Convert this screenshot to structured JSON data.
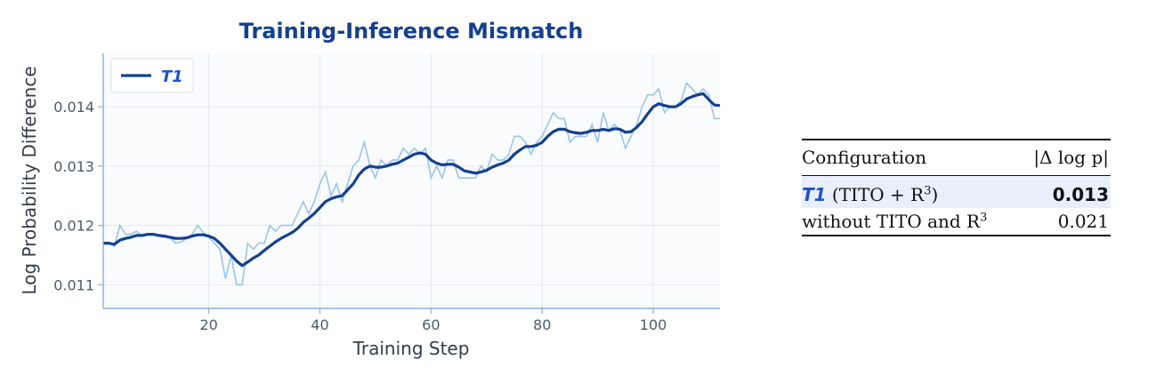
{
  "chart_data": {
    "type": "line",
    "title": "Training-Inference Mismatch",
    "xlabel": "Training Step",
    "ylabel": "Log Probability Difference",
    "xlim": [
      1,
      112
    ],
    "ylim": [
      0.0106,
      0.0149
    ],
    "xticks": [
      20,
      40,
      60,
      80,
      100
    ],
    "yticks": [
      0.011,
      0.012,
      0.013,
      0.014
    ],
    "ytick_labels": [
      "0.011",
      "0.012",
      "0.013",
      "0.014"
    ],
    "grid": true,
    "legend": {
      "position": "top-left",
      "entries": [
        "T1"
      ]
    },
    "colors": {
      "smoothed": "#14418f",
      "raw": "#9cc3ea",
      "plot_background": "#f9fbfd"
    },
    "series": [
      {
        "name": "T1",
        "style": "raw",
        "x": [
          1,
          2,
          3,
          4,
          5,
          6,
          7,
          8,
          9,
          10,
          11,
          12,
          13,
          14,
          15,
          16,
          17,
          18,
          19,
          20,
          21,
          22,
          23,
          24,
          25,
          26,
          27,
          28,
          29,
          30,
          31,
          32,
          33,
          34,
          35,
          36,
          37,
          38,
          39,
          40,
          41,
          42,
          43,
          44,
          45,
          46,
          47,
          48,
          49,
          50,
          51,
          52,
          53,
          54,
          55,
          56,
          57,
          58,
          59,
          60,
          61,
          62,
          63,
          64,
          65,
          66,
          67,
          68,
          69,
          70,
          71,
          72,
          73,
          74,
          75,
          76,
          77,
          78,
          79,
          80,
          81,
          82,
          83,
          84,
          85,
          86,
          87,
          88,
          89,
          90,
          91,
          92,
          93,
          94,
          95,
          96,
          97,
          98,
          99,
          100,
          101,
          102,
          103,
          104,
          105,
          106,
          107,
          108,
          109,
          110,
          111,
          112
        ],
        "y": [
          0.0117,
          0.0117,
          0.01165,
          0.012,
          0.01185,
          0.01185,
          0.0119,
          0.01182,
          0.01186,
          0.01185,
          0.01182,
          0.0118,
          0.0118,
          0.0117,
          0.01172,
          0.01178,
          0.01185,
          0.012,
          0.01188,
          0.0118,
          0.0117,
          0.0116,
          0.0111,
          0.0115,
          0.011,
          0.011,
          0.0117,
          0.0116,
          0.0117,
          0.0117,
          0.012,
          0.0119,
          0.012,
          0.012,
          0.012,
          0.0122,
          0.0124,
          0.0122,
          0.0124,
          0.0127,
          0.0129,
          0.0125,
          0.0127,
          0.0124,
          0.0127,
          0.013,
          0.0131,
          0.0134,
          0.013,
          0.0128,
          0.0131,
          0.013,
          0.0131,
          0.0131,
          0.0133,
          0.0132,
          0.0133,
          0.0132,
          0.0133,
          0.0128,
          0.013,
          0.0128,
          0.0131,
          0.0131,
          0.0128,
          0.0128,
          0.0128,
          0.0128,
          0.013,
          0.0129,
          0.0132,
          0.0131,
          0.0131,
          0.0132,
          0.0135,
          0.0135,
          0.0134,
          0.0132,
          0.0134,
          0.0135,
          0.0137,
          0.0139,
          0.0138,
          0.0138,
          0.0134,
          0.0135,
          0.0135,
          0.0135,
          0.0137,
          0.0134,
          0.0139,
          0.0136,
          0.0137,
          0.0136,
          0.0133,
          0.0135,
          0.0137,
          0.014,
          0.0142,
          0.0142,
          0.0143,
          0.0139,
          0.014,
          0.014,
          0.0141,
          0.0144,
          0.0143,
          0.0142,
          0.0143,
          0.0142,
          0.0138,
          0.0138
        ]
      },
      {
        "name": "T1",
        "style": "smoothed",
        "x": [
          1,
          2,
          3,
          4,
          5,
          6,
          7,
          8,
          9,
          10,
          11,
          12,
          13,
          14,
          15,
          16,
          17,
          18,
          19,
          20,
          21,
          22,
          23,
          24,
          25,
          26,
          27,
          28,
          29,
          30,
          31,
          32,
          33,
          34,
          35,
          36,
          37,
          38,
          39,
          40,
          41,
          42,
          43,
          44,
          45,
          46,
          47,
          48,
          49,
          50,
          51,
          52,
          53,
          54,
          55,
          56,
          57,
          58,
          59,
          60,
          61,
          62,
          63,
          64,
          65,
          66,
          67,
          68,
          69,
          70,
          71,
          72,
          73,
          74,
          75,
          76,
          77,
          78,
          79,
          80,
          81,
          82,
          83,
          84,
          85,
          86,
          87,
          88,
          89,
          90,
          91,
          92,
          93,
          94,
          95,
          96,
          97,
          98,
          99,
          100,
          101,
          102,
          103,
          104,
          105,
          106,
          107,
          108,
          109,
          110,
          111,
          112
        ],
        "y": [
          0.0117,
          0.0117,
          0.01168,
          0.01175,
          0.01178,
          0.0118,
          0.01183,
          0.01183,
          0.01185,
          0.01185,
          0.01183,
          0.01182,
          0.0118,
          0.01178,
          0.01178,
          0.01179,
          0.01182,
          0.01184,
          0.01184,
          0.01182,
          0.01178,
          0.0117,
          0.0116,
          0.0115,
          0.0114,
          0.01132,
          0.01138,
          0.01145,
          0.0115,
          0.01158,
          0.01165,
          0.01172,
          0.01178,
          0.01183,
          0.01188,
          0.01195,
          0.01205,
          0.01212,
          0.0122,
          0.0123,
          0.0124,
          0.01245,
          0.01248,
          0.0125,
          0.0126,
          0.0127,
          0.01285,
          0.01295,
          0.013,
          0.01298,
          0.01298,
          0.013,
          0.01303,
          0.01305,
          0.0131,
          0.01315,
          0.0132,
          0.01322,
          0.0132,
          0.0131,
          0.01305,
          0.01302,
          0.01303,
          0.01303,
          0.01298,
          0.01292,
          0.0129,
          0.01288,
          0.0129,
          0.01293,
          0.01298,
          0.01302,
          0.01305,
          0.0131,
          0.0132,
          0.01327,
          0.01333,
          0.01333,
          0.01335,
          0.0134,
          0.0135,
          0.01358,
          0.01362,
          0.01362,
          0.01358,
          0.01356,
          0.01355,
          0.01357,
          0.0136,
          0.0136,
          0.01362,
          0.0136,
          0.01363,
          0.01362,
          0.01357,
          0.01358,
          0.01365,
          0.01375,
          0.01388,
          0.014,
          0.01405,
          0.01402,
          0.014,
          0.014,
          0.01405,
          0.01413,
          0.01417,
          0.0142,
          0.01422,
          0.01412,
          0.01403,
          0.01402
        ]
      }
    ]
  },
  "table": {
    "headers": {
      "config": "Configuration",
      "delta": "|Δ log p|"
    },
    "rows": [
      {
        "tag": "T1",
        "config": " (TITO + R",
        "sup": "3",
        "suffix": ")",
        "value": "0.013",
        "highlight": true
      },
      {
        "tag": "",
        "config": "without TITO and R",
        "sup": "3",
        "suffix": "",
        "value": "0.021",
        "highlight": false
      }
    ]
  }
}
